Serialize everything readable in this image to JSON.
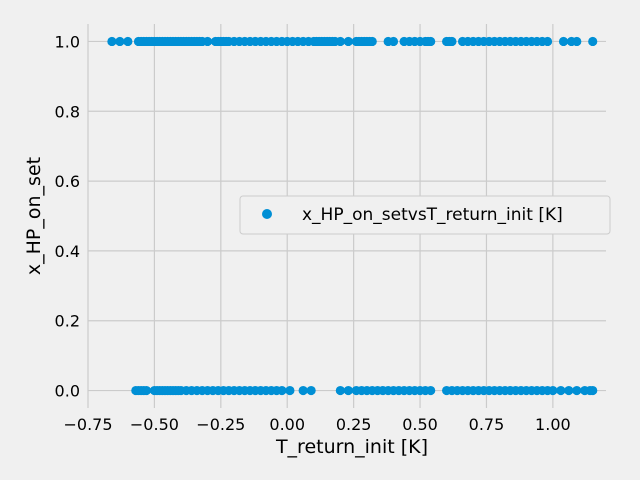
{
  "chart_data": {
    "type": "scatter",
    "xlabel": "T_return_init [K]",
    "ylabel": "x_HP_on_set",
    "xlim": [
      -0.75,
      1.2
    ],
    "ylim": [
      -0.05,
      1.05
    ],
    "xticks": [
      -0.75,
      -0.5,
      -0.25,
      0.0,
      0.25,
      0.5,
      0.75,
      1.0
    ],
    "xtick_labels": [
      "−0.75",
      "−0.50",
      "−0.25",
      "0.00",
      "0.25",
      "0.50",
      "0.75",
      "1.00"
    ],
    "yticks": [
      0.0,
      0.2,
      0.4,
      0.6,
      0.8,
      1.0
    ],
    "ytick_labels": [
      "0.0",
      "0.2",
      "0.4",
      "0.6",
      "0.8",
      "1.0"
    ],
    "grid": true,
    "legend_position": "center-right",
    "series": [
      {
        "name": "x_HP_on_setvsT_return_init [K]",
        "color": "#008fd5",
        "marker": "circle",
        "points": [
          [
            -0.66,
            1
          ],
          [
            -0.63,
            1
          ],
          [
            -0.6,
            1
          ],
          [
            -0.56,
            1
          ],
          [
            -0.55,
            1
          ],
          [
            -0.54,
            1
          ],
          [
            -0.53,
            1
          ],
          [
            -0.52,
            1
          ],
          [
            -0.51,
            1
          ],
          [
            -0.5,
            1
          ],
          [
            -0.49,
            1
          ],
          [
            -0.48,
            1
          ],
          [
            -0.47,
            1
          ],
          [
            -0.46,
            1
          ],
          [
            -0.45,
            1
          ],
          [
            -0.44,
            1
          ],
          [
            -0.43,
            1
          ],
          [
            -0.42,
            1
          ],
          [
            -0.41,
            1
          ],
          [
            -0.4,
            1
          ],
          [
            -0.39,
            1
          ],
          [
            -0.38,
            1
          ],
          [
            -0.37,
            1
          ],
          [
            -0.36,
            1
          ],
          [
            -0.35,
            1
          ],
          [
            -0.34,
            1
          ],
          [
            -0.33,
            1
          ],
          [
            -0.32,
            1
          ],
          [
            -0.3,
            1
          ],
          [
            -0.27,
            1
          ],
          [
            -0.26,
            1
          ],
          [
            -0.25,
            1
          ],
          [
            -0.24,
            1
          ],
          [
            -0.23,
            1
          ],
          [
            -0.22,
            1
          ],
          [
            -0.2,
            1
          ],
          [
            -0.18,
            1
          ],
          [
            -0.16,
            1
          ],
          [
            -0.14,
            1
          ],
          [
            -0.12,
            1
          ],
          [
            -0.1,
            1
          ],
          [
            -0.08,
            1
          ],
          [
            -0.06,
            1
          ],
          [
            -0.04,
            1
          ],
          [
            -0.02,
            1
          ],
          [
            0.0,
            1
          ],
          [
            0.02,
            1
          ],
          [
            0.04,
            1
          ],
          [
            0.06,
            1
          ],
          [
            0.08,
            1
          ],
          [
            0.1,
            1
          ],
          [
            0.11,
            1
          ],
          [
            0.12,
            1
          ],
          [
            0.13,
            1
          ],
          [
            0.14,
            1
          ],
          [
            0.15,
            1
          ],
          [
            0.16,
            1
          ],
          [
            0.17,
            1
          ],
          [
            0.18,
            1
          ],
          [
            0.2,
            1
          ],
          [
            0.23,
            1
          ],
          [
            0.26,
            1
          ],
          [
            0.27,
            1
          ],
          [
            0.28,
            1
          ],
          [
            0.29,
            1
          ],
          [
            0.3,
            1
          ],
          [
            0.31,
            1
          ],
          [
            0.32,
            1
          ],
          [
            0.38,
            1
          ],
          [
            0.4,
            1
          ],
          [
            0.44,
            1
          ],
          [
            0.46,
            1
          ],
          [
            0.48,
            1
          ],
          [
            0.5,
            1
          ],
          [
            0.52,
            1
          ],
          [
            0.53,
            1
          ],
          [
            0.54,
            1
          ],
          [
            0.6,
            1
          ],
          [
            0.61,
            1
          ],
          [
            0.62,
            1
          ],
          [
            0.66,
            1
          ],
          [
            0.68,
            1
          ],
          [
            0.7,
            1
          ],
          [
            0.72,
            1
          ],
          [
            0.74,
            1
          ],
          [
            0.76,
            1
          ],
          [
            0.78,
            1
          ],
          [
            0.8,
            1
          ],
          [
            0.82,
            1
          ],
          [
            0.84,
            1
          ],
          [
            0.86,
            1
          ],
          [
            0.88,
            1
          ],
          [
            0.9,
            1
          ],
          [
            0.92,
            1
          ],
          [
            0.94,
            1
          ],
          [
            0.96,
            1
          ],
          [
            0.98,
            1
          ],
          [
            1.04,
            1
          ],
          [
            1.07,
            1
          ],
          [
            1.09,
            1
          ],
          [
            1.15,
            1
          ],
          [
            -0.57,
            0
          ],
          [
            -0.56,
            0
          ],
          [
            -0.55,
            0
          ],
          [
            -0.54,
            0
          ],
          [
            -0.53,
            0
          ],
          [
            -0.5,
            0
          ],
          [
            -0.49,
            0
          ],
          [
            -0.48,
            0
          ],
          [
            -0.47,
            0
          ],
          [
            -0.46,
            0
          ],
          [
            -0.45,
            0
          ],
          [
            -0.44,
            0
          ],
          [
            -0.43,
            0
          ],
          [
            -0.42,
            0
          ],
          [
            -0.41,
            0
          ],
          [
            -0.4,
            0
          ],
          [
            -0.38,
            0
          ],
          [
            -0.36,
            0
          ],
          [
            -0.34,
            0
          ],
          [
            -0.32,
            0
          ],
          [
            -0.3,
            0
          ],
          [
            -0.28,
            0
          ],
          [
            -0.26,
            0
          ],
          [
            -0.24,
            0
          ],
          [
            -0.22,
            0
          ],
          [
            -0.2,
            0
          ],
          [
            -0.18,
            0
          ],
          [
            -0.16,
            0
          ],
          [
            -0.14,
            0
          ],
          [
            -0.12,
            0
          ],
          [
            -0.1,
            0
          ],
          [
            -0.08,
            0
          ],
          [
            -0.06,
            0
          ],
          [
            -0.04,
            0
          ],
          [
            -0.02,
            0
          ],
          [
            0.01,
            0
          ],
          [
            0.06,
            0
          ],
          [
            0.09,
            0
          ],
          [
            0.2,
            0
          ],
          [
            0.23,
            0
          ],
          [
            0.26,
            0
          ],
          [
            0.28,
            0
          ],
          [
            0.3,
            0
          ],
          [
            0.32,
            0
          ],
          [
            0.34,
            0
          ],
          [
            0.36,
            0
          ],
          [
            0.38,
            0
          ],
          [
            0.4,
            0
          ],
          [
            0.42,
            0
          ],
          [
            0.44,
            0
          ],
          [
            0.46,
            0
          ],
          [
            0.48,
            0
          ],
          [
            0.5,
            0
          ],
          [
            0.52,
            0
          ],
          [
            0.54,
            0
          ],
          [
            0.6,
            0
          ],
          [
            0.62,
            0
          ],
          [
            0.64,
            0
          ],
          [
            0.66,
            0
          ],
          [
            0.68,
            0
          ],
          [
            0.7,
            0
          ],
          [
            0.72,
            0
          ],
          [
            0.74,
            0
          ],
          [
            0.76,
            0
          ],
          [
            0.78,
            0
          ],
          [
            0.8,
            0
          ],
          [
            0.82,
            0
          ],
          [
            0.84,
            0
          ],
          [
            0.86,
            0
          ],
          [
            0.88,
            0
          ],
          [
            0.9,
            0
          ],
          [
            0.92,
            0
          ],
          [
            0.94,
            0
          ],
          [
            0.96,
            0
          ],
          [
            0.98,
            0
          ],
          [
            1.0,
            0
          ],
          [
            1.03,
            0
          ],
          [
            1.06,
            0
          ],
          [
            1.09,
            0
          ],
          [
            1.12,
            0
          ],
          [
            1.14,
            0
          ],
          [
            1.15,
            0
          ]
        ]
      }
    ]
  }
}
